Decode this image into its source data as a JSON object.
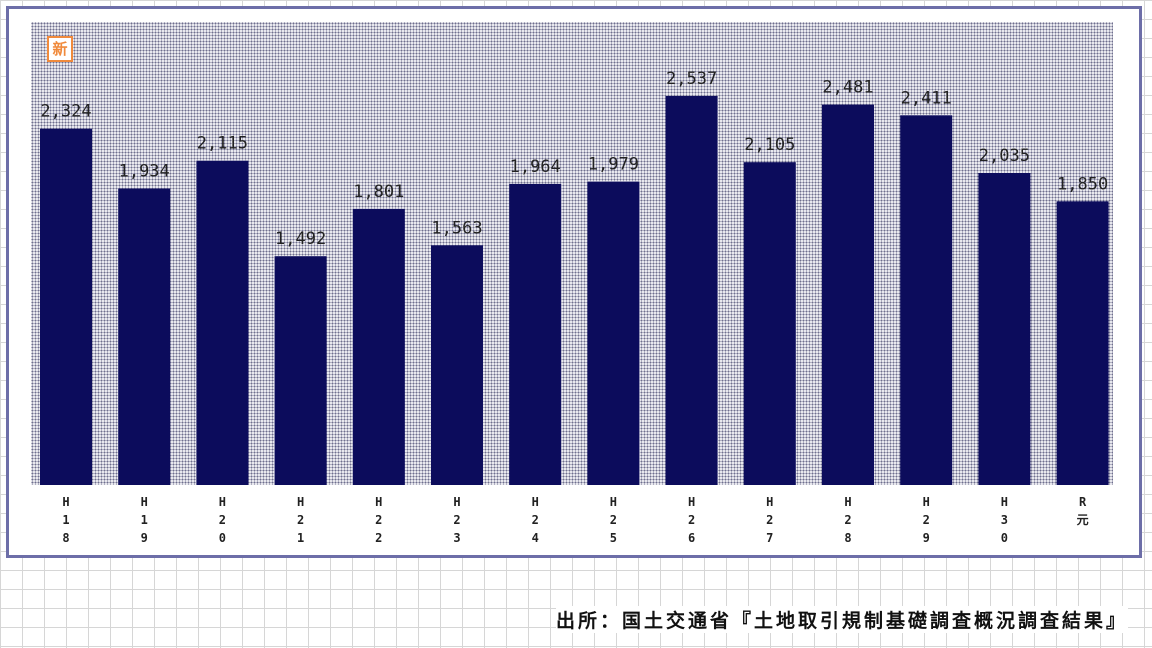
{
  "badge": {
    "glyph": "新"
  },
  "source": "出所：国土交通省『土地取引規制基礎調査概況調査結果』",
  "colors": {
    "bar": "#0c0c5c",
    "frame": "#6d6ea8",
    "badge": "#f08a3c"
  },
  "chart_data": {
    "type": "bar",
    "categories": [
      "H18",
      "H19",
      "H20",
      "H21",
      "H22",
      "H23",
      "H24",
      "H25",
      "H26",
      "H27",
      "H28",
      "H29",
      "H30",
      "R元"
    ],
    "category_labels": [
      [
        "H",
        "1",
        "8"
      ],
      [
        "H",
        "1",
        "9"
      ],
      [
        "H",
        "2",
        "0"
      ],
      [
        "H",
        "2",
        "1"
      ],
      [
        "H",
        "2",
        "2"
      ],
      [
        "H",
        "2",
        "3"
      ],
      [
        "H",
        "2",
        "4"
      ],
      [
        "H",
        "2",
        "5"
      ],
      [
        "H",
        "2",
        "6"
      ],
      [
        "H",
        "2",
        "7"
      ],
      [
        "H",
        "2",
        "8"
      ],
      [
        "H",
        "2",
        "9"
      ],
      [
        "H",
        "3",
        "0"
      ],
      [
        "R",
        "元"
      ]
    ],
    "values": [
      2324,
      1934,
      2115,
      1492,
      1801,
      1563,
      1964,
      1979,
      2537,
      2105,
      2481,
      2411,
      2035,
      1850
    ],
    "value_labels": [
      "2,324",
      "1,934",
      "2,115",
      "1,492",
      "1,801",
      "1,563",
      "1,964",
      "1,979",
      "2,537",
      "2,105",
      "2,481",
      "2,411",
      "2,035",
      "1,850"
    ],
    "ylim": [
      0,
      2537
    ],
    "grid": false,
    "legend": "none"
  }
}
